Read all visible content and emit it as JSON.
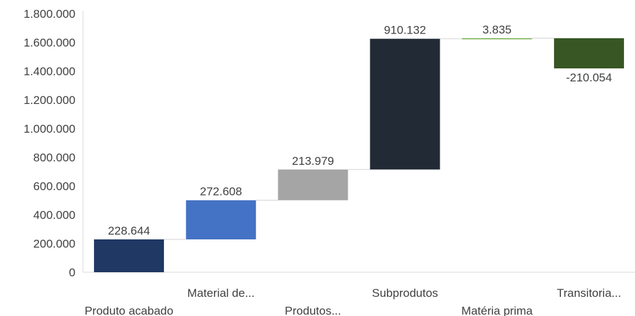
{
  "chart_data": {
    "type": "bar",
    "subtype": "waterfall",
    "title": "",
    "xlabel": "",
    "ylabel": "",
    "ylim": [
      0,
      1800000
    ],
    "yticks": [
      0,
      200000,
      400000,
      600000,
      800000,
      1000000,
      1200000,
      1400000,
      1600000,
      1800000
    ],
    "ytick_labels": [
      "0",
      "200.000",
      "400.000",
      "600.000",
      "800.000",
      "1.000.000",
      "1.200.000",
      "1.400.000",
      "1.600.000",
      "1.800.000"
    ],
    "grid": false,
    "legend": "none",
    "categories": [
      "Produto acabado",
      "Material de...",
      "Produtos...",
      "Subprodutos",
      "Matéria prima",
      "Transitoria..."
    ],
    "values": [
      228644,
      272608,
      213979,
      910132,
      3835,
      -210054
    ],
    "value_labels": [
      "228.644",
      "272.608",
      "213.979",
      "910.132",
      "3.835",
      "-210.054"
    ],
    "colors": [
      "#1f3864",
      "#4472c4",
      "#a5a5a5",
      "#222a35",
      "#70ad47",
      "#375623"
    ]
  }
}
